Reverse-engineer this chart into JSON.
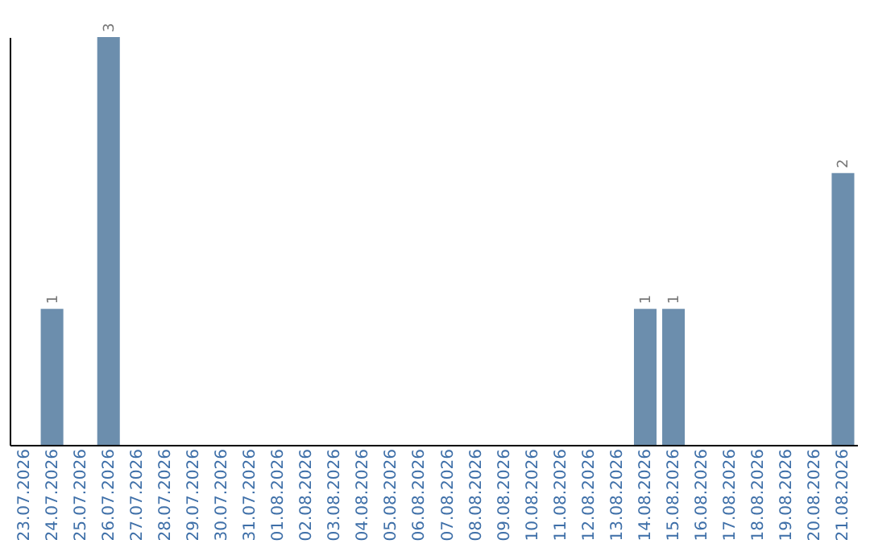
{
  "chart_data": {
    "type": "bar",
    "categories": [
      "23.07.2026",
      "24.07.2026",
      "25.07.2026",
      "26.07.2026",
      "27.07.2026",
      "28.07.2026",
      "29.07.2026",
      "30.07.2026",
      "31.07.2026",
      "01.08.2026",
      "02.08.2026",
      "03.08.2026",
      "04.08.2026",
      "05.08.2026",
      "06.08.2026",
      "07.08.2026",
      "08.08.2026",
      "09.08.2026",
      "10.08.2026",
      "11.08.2026",
      "12.08.2026",
      "13.08.2026",
      "14.08.2026",
      "15.08.2026",
      "16.08.2026",
      "17.08.2026",
      "18.08.2026",
      "19.08.2026",
      "20.08.2026",
      "21.08.2026"
    ],
    "values": [
      0,
      1,
      0,
      3,
      0,
      0,
      0,
      0,
      0,
      0,
      0,
      0,
      0,
      0,
      0,
      0,
      0,
      0,
      0,
      0,
      0,
      0,
      1,
      1,
      0,
      0,
      0,
      0,
      0,
      2
    ],
    "value_labels": [
      null,
      "1",
      null,
      "3",
      null,
      null,
      null,
      null,
      null,
      null,
      null,
      null,
      null,
      null,
      null,
      null,
      null,
      null,
      null,
      null,
      null,
      null,
      "1",
      "1",
      null,
      null,
      null,
      null,
      null,
      "2"
    ],
    "color": "#6c8ead",
    "tick_labels": "x",
    "grid": false
  }
}
